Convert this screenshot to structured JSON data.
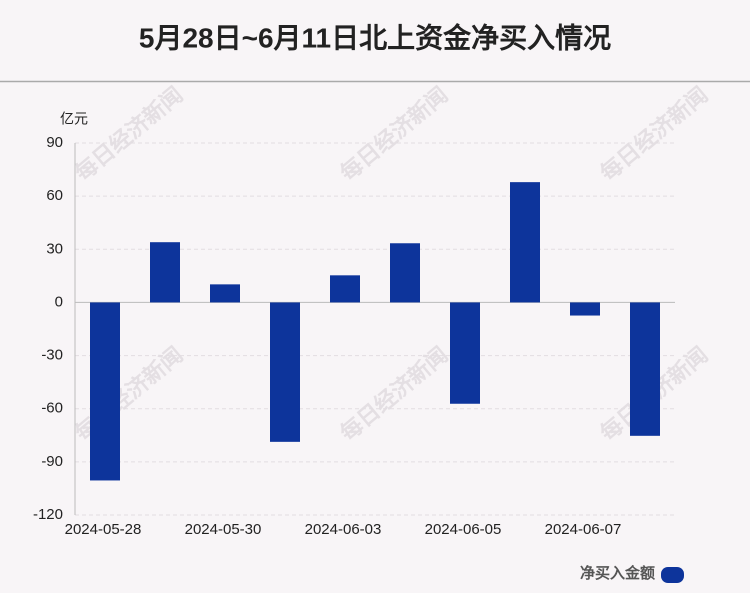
{
  "chart_data": {
    "type": "bar",
    "title": "5月28日~6月11日北上资金净买入情况",
    "y_unit": "亿元",
    "watermark": "每日经济新闻",
    "categories": [
      "2024-05-28",
      null,
      "2024-05-30",
      null,
      "2024-06-03",
      null,
      "2024-06-05",
      null,
      "2024-06-07",
      null
    ],
    "series": [
      {
        "name": "净买入金额",
        "color": "#0d349b",
        "values": [
          -100.5,
          34,
          10.2,
          -78.7,
          15.3,
          33.4,
          -57.2,
          67.9,
          -7.4,
          -75.3
        ]
      }
    ],
    "ylim": [
      -120,
      90
    ],
    "yticks": [
      -120,
      -90,
      -60,
      -30,
      0,
      30,
      60,
      90
    ],
    "grid": true
  }
}
